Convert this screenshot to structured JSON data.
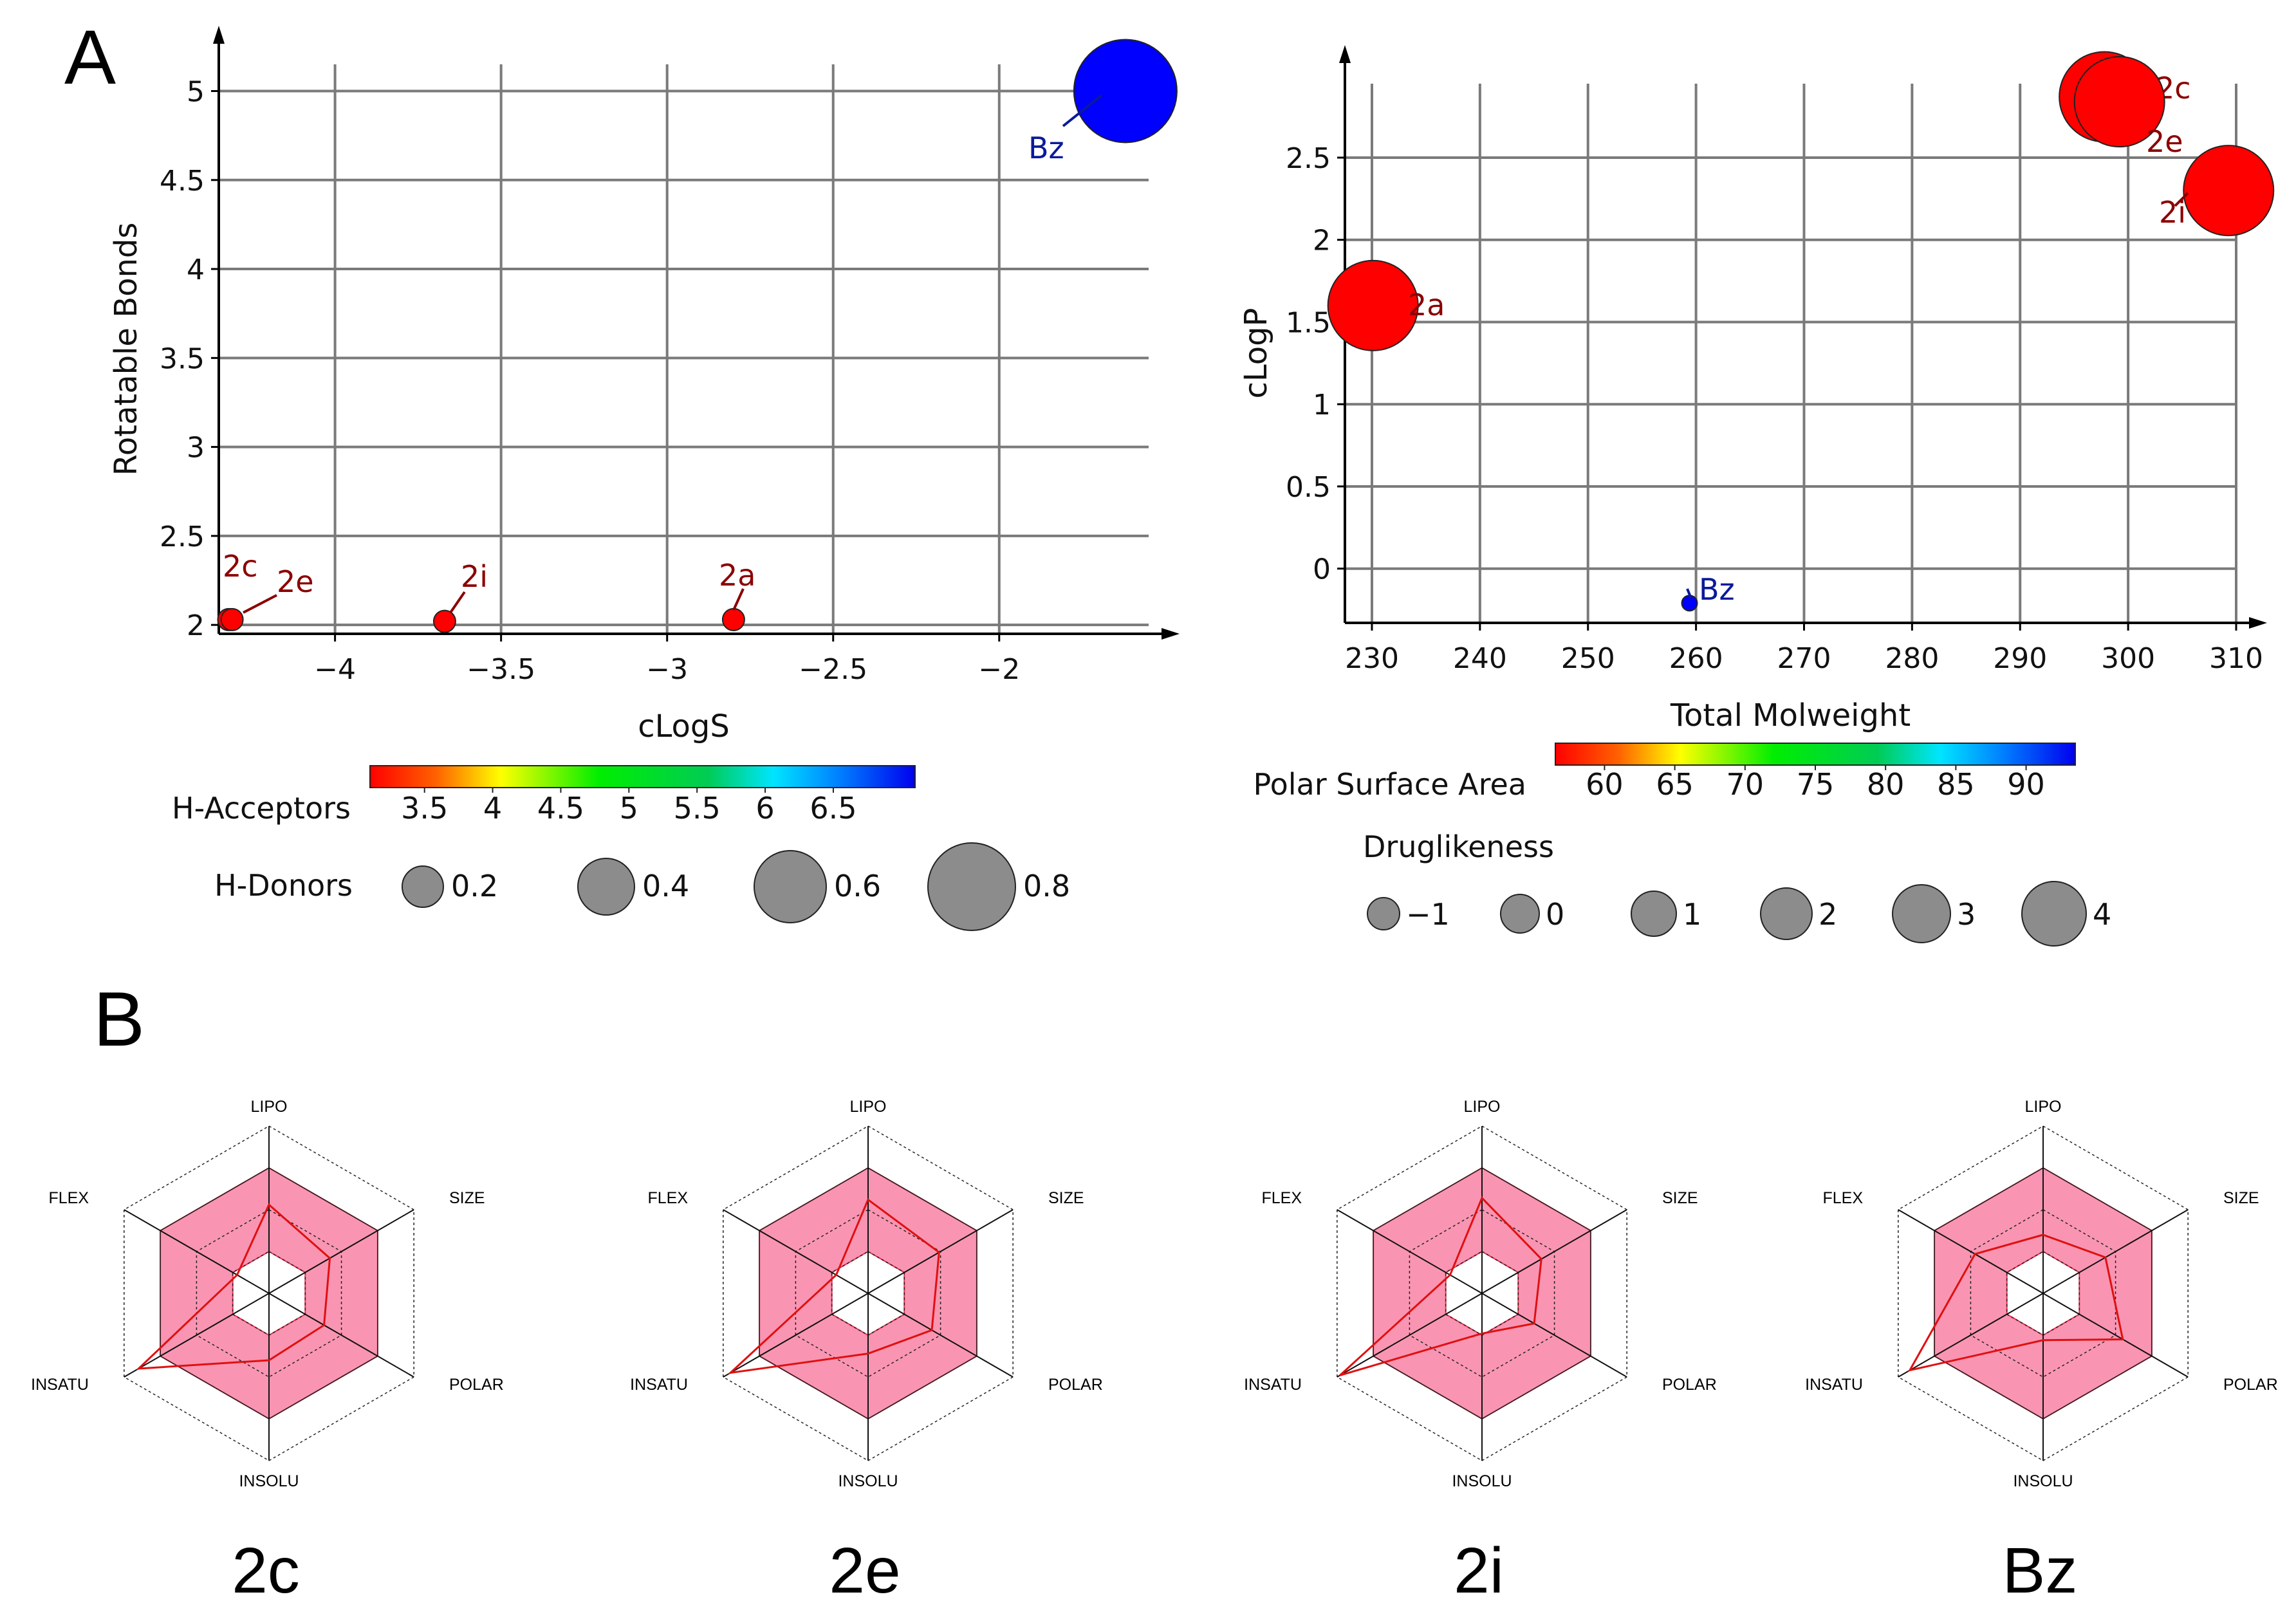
{
  "panels": {
    "a": "A",
    "b": "B"
  },
  "chart_data": [
    {
      "type": "scatter",
      "xlabel": "cLogS",
      "ylabel": "Rotatable Bonds",
      "xlim": [
        -4.35,
        -1.55
      ],
      "ylim": [
        1.95,
        5.15
      ],
      "xticks": [
        -4,
        -3.5,
        -3,
        -2.5,
        -2
      ],
      "yticks": [
        2,
        2.5,
        3,
        3.5,
        4,
        4.5,
        5
      ],
      "xtick_labels": [
        "−4",
        "−3.5",
        "−3",
        "−2.5",
        "−2"
      ],
      "ytick_labels": [
        "2",
        "2.5",
        "3",
        "3.5",
        "4",
        "4.5",
        "5"
      ],
      "grid": true,
      "color_encoding": {
        "label": "H-Acceptors",
        "ticks": [
          "3.5",
          "4",
          "4.5",
          "5",
          "5.5",
          "6",
          "6.5"
        ],
        "range": [
          3.1,
          7.1
        ]
      },
      "size_encoding": {
        "label": "H-Donors",
        "ticks": [
          "0.2",
          "0.4",
          "0.6",
          "0.8"
        ],
        "values": [
          0.2,
          0.4,
          0.6,
          0.8
        ]
      },
      "points": [
        {
          "label": "Bz",
          "x": -1.62,
          "y": 5.0,
          "h_acceptors": 7.0,
          "h_donors": 1.0,
          "color": "#0000ff"
        },
        {
          "label": "2a",
          "x": -2.8,
          "y": 2.03,
          "h_acceptors": 3.1,
          "h_donors": 0.0,
          "color": "#ff0000"
        },
        {
          "label": "2i",
          "x": -3.67,
          "y": 2.02,
          "h_acceptors": 3.1,
          "h_donors": 0.0,
          "color": "#ff0000"
        },
        {
          "label": "2c",
          "x": -4.32,
          "y": 2.03,
          "h_acceptors": 3.1,
          "h_donors": 0.0,
          "color": "#ff0000"
        },
        {
          "label": "2e",
          "x": -4.31,
          "y": 2.03,
          "h_acceptors": 3.1,
          "h_donors": 0.0,
          "color": "#ff0000"
        }
      ]
    },
    {
      "type": "scatter",
      "xlabel": "Total Molweight",
      "ylabel": "cLogP",
      "xlim": [
        227.5,
        310
      ],
      "ylim": [
        -0.33,
        2.95
      ],
      "xticks": [
        230,
        240,
        250,
        260,
        270,
        280,
        290,
        300,
        310
      ],
      "yticks": [
        0,
        0.5,
        1,
        1.5,
        2,
        2.5
      ],
      "xtick_labels": [
        "230",
        "240",
        "250",
        "260",
        "270",
        "280",
        "290",
        "300",
        "310"
      ],
      "ytick_labels": [
        "0",
        "0.5",
        "1",
        "1.5",
        "2",
        "2.5"
      ],
      "grid": true,
      "color_encoding": {
        "label": "Polar Surface Area",
        "ticks": [
          "60",
          "65",
          "70",
          "75",
          "80",
          "85",
          "90"
        ],
        "range": [
          56.5,
          93.5
        ]
      },
      "size_encoding": {
        "label": "Druglikeness",
        "ticks": [
          "−1",
          "0",
          "1",
          "2",
          "3",
          "4"
        ],
        "values": [
          -1,
          0,
          1,
          2,
          3,
          4
        ]
      },
      "points": [
        {
          "label": "2c",
          "x": 297.8,
          "y": 2.87,
          "druglikeness": 3.9,
          "color": "#ff0000"
        },
        {
          "label": "2e",
          "x": 299.2,
          "y": 2.84,
          "druglikeness": 3.9,
          "color": "#ff0000"
        },
        {
          "label": "2i",
          "x": 309.3,
          "y": 2.3,
          "druglikeness": 3.5,
          "color": "#ff0000"
        },
        {
          "label": "2a",
          "x": 230.1,
          "y": 1.6,
          "druglikeness": 4.2,
          "color": "#ff0000"
        },
        {
          "label": "Bz",
          "x": 259.4,
          "y": -0.21,
          "druglikeness": -1.4,
          "color": "#0000ff"
        }
      ]
    },
    {
      "type": "radar",
      "axes": [
        "LIPO",
        "SIZE",
        "POLAR",
        "INSOLU",
        "INSATU",
        "FLEX"
      ],
      "range": [
        0,
        1
      ],
      "optimal_band": [
        0.25,
        0.75
      ],
      "compounds": [
        {
          "name": "2c",
          "values": [
            0.53,
            0.42,
            0.38,
            0.4,
            0.9,
            0.22
          ]
        },
        {
          "name": "2e",
          "values": [
            0.56,
            0.49,
            0.44,
            0.36,
            0.95,
            0.22
          ]
        },
        {
          "name": "2i",
          "values": [
            0.57,
            0.41,
            0.36,
            0.24,
            0.98,
            0.22
          ]
        },
        {
          "name": "Bz",
          "values": [
            0.35,
            0.43,
            0.55,
            0.28,
            0.92,
            0.47
          ]
        }
      ]
    }
  ],
  "colors": {
    "grid": "#7a7a7a",
    "axis": "#000000",
    "marker_gray": "#8c8c8c",
    "band_fill": "#f995b2",
    "band_edge": "#e63355",
    "profile_line": "#e01010"
  }
}
